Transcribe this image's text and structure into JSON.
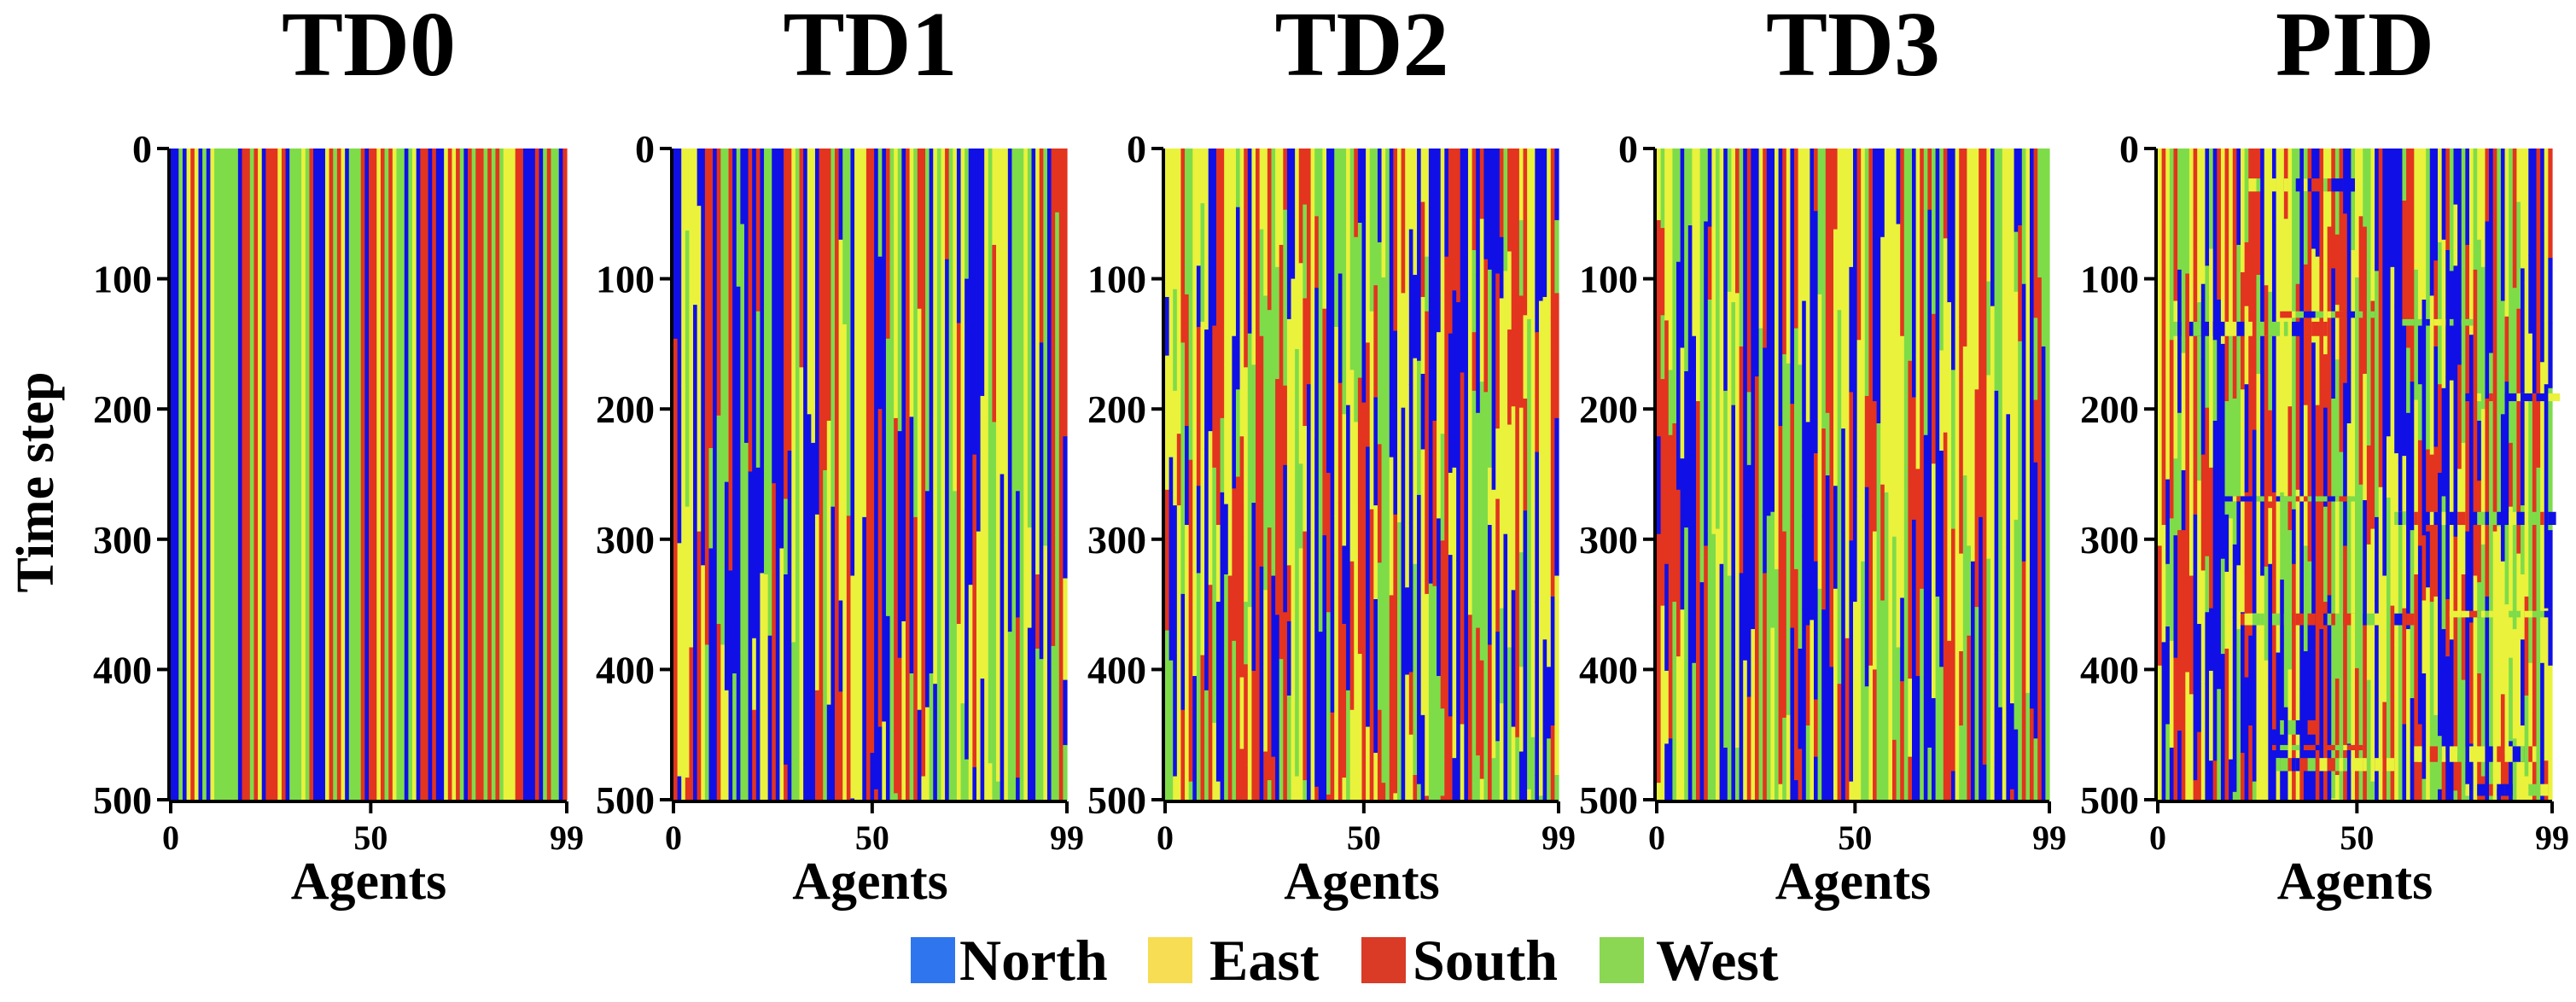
{
  "chart_data": [
    {
      "type": "heatmap",
      "title": "TD0",
      "xlabel": "Agents",
      "ylabel": "Time step",
      "x_ticks": [
        "0",
        "50",
        "99"
      ],
      "y_ticks": [
        "0",
        "100",
        "200",
        "300",
        "400",
        "500"
      ],
      "xlim": [
        0,
        99
      ],
      "ylim": [
        0,
        500
      ],
      "seed": 11,
      "switch_rate": 0.0,
      "bands": 0
    },
    {
      "type": "heatmap",
      "title": "TD1",
      "xlabel": "Agents",
      "ylabel": "",
      "x_ticks": [
        "0",
        "50",
        "99"
      ],
      "y_ticks": [
        "0",
        "100",
        "200",
        "300",
        "400",
        "500"
      ],
      "xlim": [
        0,
        99
      ],
      "ylim": [
        0,
        500
      ],
      "seed": 23,
      "switch_rate": 0.12,
      "bands": 0
    },
    {
      "type": "heatmap",
      "title": "TD2",
      "xlabel": "Agents",
      "ylabel": "",
      "x_ticks": [
        "0",
        "50",
        "99"
      ],
      "y_ticks": [
        "0",
        "100",
        "200",
        "300",
        "400",
        "500"
      ],
      "xlim": [
        0,
        99
      ],
      "ylim": [
        0,
        500
      ],
      "seed": 37,
      "switch_rate": 0.55,
      "bands": 0
    },
    {
      "type": "heatmap",
      "title": "TD3",
      "xlabel": "Agents",
      "ylabel": "",
      "x_ticks": [
        "0",
        "50",
        "99"
      ],
      "y_ticks": [
        "0",
        "100",
        "200",
        "300",
        "400",
        "500"
      ],
      "xlim": [
        0,
        99
      ],
      "ylim": [
        0,
        500
      ],
      "seed": 53,
      "switch_rate": 0.3,
      "bands": 0
    },
    {
      "type": "heatmap",
      "title": "PID",
      "xlabel": "Agents",
      "ylabel": "",
      "x_ticks": [
        "0",
        "50",
        "99"
      ],
      "y_ticks": [
        "0",
        "100",
        "200",
        "300",
        "400",
        "500"
      ],
      "xlim": [
        0,
        99
      ],
      "ylim": [
        0,
        500
      ],
      "seed": 71,
      "switch_rate": 0.9,
      "bands": 14
    }
  ],
  "legend": [
    {
      "label": "North",
      "color": "#2f76ee"
    },
    {
      "label": "East",
      "color": "#f7dd53"
    },
    {
      "label": "South",
      "color": "#d93b26"
    },
    {
      "label": "West",
      "color": "#8bd653"
    }
  ],
  "cell_palette": {
    "North": "#1010e6",
    "East": "#eaf23c",
    "South": "#e2341f",
    "West": "#7fdc49"
  }
}
